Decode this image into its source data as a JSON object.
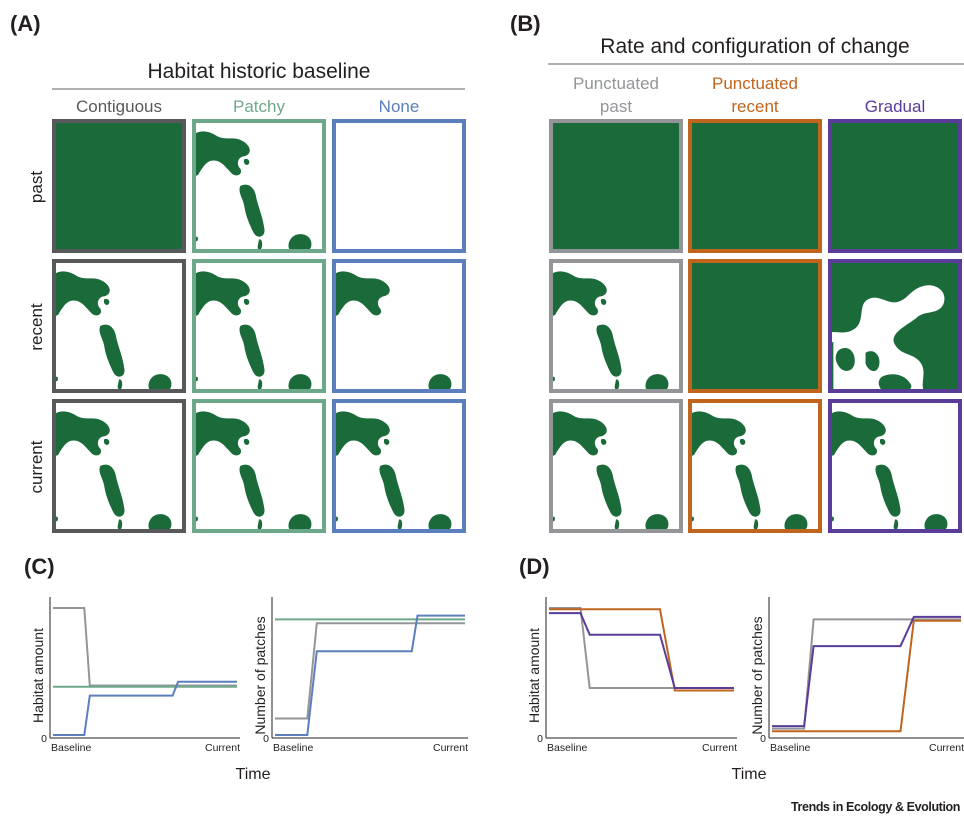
{
  "panels": {
    "A": {
      "label": "(A)",
      "title": "Habitat historic baseline",
      "columns": [
        {
          "label": "Contiguous",
          "color": "#58595b"
        },
        {
          "label": "Patchy",
          "color": "#6ea88a"
        },
        {
          "label": "None",
          "color": "#5b7fbd"
        }
      ],
      "rows": [
        "past",
        "recent",
        "current"
      ],
      "cells": [
        [
          "full",
          "patches",
          "empty"
        ],
        [
          "patches",
          "patches",
          "patches-small"
        ],
        [
          "patches",
          "patches",
          "patches"
        ]
      ]
    },
    "B": {
      "label": "(B)",
      "title": "Rate and configuration of change",
      "columns": [
        {
          "label": "Punctuated past",
          "lines": [
            "Punctuated",
            "past"
          ],
          "color": "#939598"
        },
        {
          "label": "Punctuated recent",
          "lines": [
            "Punctuated",
            "recent"
          ],
          "color": "#c0651e"
        },
        {
          "label": "Gradual",
          "lines": [
            "Gradual"
          ],
          "color": "#5a3d99"
        }
      ],
      "cells": [
        [
          "full",
          "full",
          "full"
        ],
        [
          "patches",
          "full",
          "gradual"
        ],
        [
          "patches",
          "patches",
          "patches"
        ]
      ]
    },
    "C": {
      "label": "(C)"
    },
    "D": {
      "label": "(D)"
    }
  },
  "colors": {
    "habitat": "#1b6b3a"
  },
  "x_axis_label": "Time",
  "credit": "Trends in Ecology & Evolution",
  "chart_data": [
    {
      "panel": "C",
      "type": "line",
      "ylabel": "Habitat amount",
      "y_tick_labels": [
        "0"
      ],
      "x_tick_labels": [
        "Baseline",
        "Current"
      ],
      "x": [
        0,
        0.17,
        0.2,
        0.65,
        0.68,
        1
      ],
      "ylim": [
        0,
        1
      ],
      "series": [
        {
          "color": "#939598",
          "values": [
            1.0,
            1.0,
            0.39,
            0.39,
            0.39,
            0.39
          ]
        },
        {
          "color": "#6ea88a",
          "values": [
            0.38,
            0.38,
            0.38,
            0.38,
            0.38,
            0.38
          ]
        },
        {
          "color": "#5b7fbd",
          "values": [
            0.0,
            0.0,
            0.31,
            0.31,
            0.42,
            0.42
          ]
        }
      ]
    },
    {
      "panel": "C",
      "type": "line",
      "ylabel": "Number of patches",
      "y_tick_labels": [
        "0"
      ],
      "x_tick_labels": [
        "Baseline",
        "Current"
      ],
      "x": [
        0,
        0.17,
        0.22,
        0.5,
        0.53,
        0.72,
        0.75,
        1
      ],
      "ylim": [
        0,
        1
      ],
      "series": [
        {
          "color": "#939598",
          "values": [
            0.13,
            0.13,
            0.88,
            0.88,
            0.88,
            0.88,
            0.88,
            0.88
          ]
        },
        {
          "color": "#6ea88a",
          "values": [
            0.91,
            0.91,
            0.91,
            0.91,
            0.91,
            0.91,
            0.91,
            0.91
          ]
        },
        {
          "color": "#5b7fbd",
          "values": [
            0.0,
            0.0,
            0.66,
            0.66,
            0.66,
            0.66,
            0.94,
            0.94
          ]
        }
      ]
    },
    {
      "panel": "D",
      "type": "line",
      "ylabel": "Habitat amount",
      "y_tick_labels": [
        "0"
      ],
      "x_tick_labels": [
        "Baseline",
        "Current"
      ],
      "x": [
        0,
        0.17,
        0.22,
        0.6,
        0.68,
        1
      ],
      "ylim": [
        0,
        1
      ],
      "series": [
        {
          "color": "#939598",
          "values": [
            1.0,
            1.0,
            0.37,
            0.37,
            0.37,
            0.37
          ]
        },
        {
          "color": "#c0651e",
          "values": [
            0.99,
            0.99,
            0.99,
            0.99,
            0.35,
            0.35
          ]
        },
        {
          "color": "#5a3d99",
          "values": [
            0.96,
            0.96,
            0.79,
            0.79,
            0.37,
            0.37
          ]
        }
      ]
    },
    {
      "panel": "D",
      "type": "line",
      "ylabel": "Number of patches",
      "y_tick_labels": [
        "0"
      ],
      "x_tick_labels": [
        "Baseline",
        "Current"
      ],
      "x": [
        0,
        0.17,
        0.22,
        0.6,
        0.68,
        0.75,
        1
      ],
      "ylim": [
        0,
        1
      ],
      "series": [
        {
          "color": "#939598",
          "values": [
            0.05,
            0.05,
            0.91,
            0.91,
            0.91,
            0.91,
            0.91
          ]
        },
        {
          "color": "#c0651e",
          "values": [
            0.03,
            0.03,
            0.03,
            0.03,
            0.03,
            0.9,
            0.9
          ]
        },
        {
          "color": "#5a3d99",
          "values": [
            0.07,
            0.07,
            0.7,
            0.7,
            0.7,
            0.93,
            0.93
          ]
        }
      ]
    }
  ]
}
